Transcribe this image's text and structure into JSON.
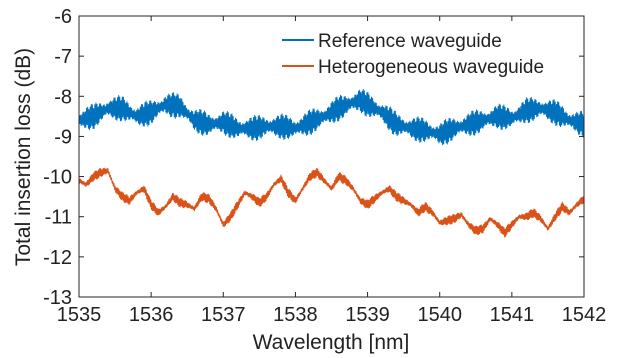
{
  "chart_data": {
    "type": "line",
    "title": "",
    "xlabel": "Wavelength [nm]",
    "ylabel": "Total insertion loss (dB)",
    "xlim": [
      1535,
      1542
    ],
    "ylim": [
      -13,
      -6
    ],
    "xticks": [
      1535,
      1536,
      1537,
      1538,
      1539,
      1540,
      1541,
      1542
    ],
    "yticks": [
      -13,
      -12,
      -11,
      -10,
      -9,
      -8,
      -7,
      -6
    ],
    "grid": false,
    "legend_position": "top-right",
    "series": [
      {
        "name": "Reference waveguide",
        "color": "#0072BD",
        "ripple": 0.22,
        "x": [
          1535.0,
          1535.2,
          1535.4,
          1535.6,
          1535.8,
          1536.0,
          1536.2,
          1536.4,
          1536.6,
          1536.8,
          1537.0,
          1537.2,
          1537.4,
          1537.6,
          1537.8,
          1538.0,
          1538.2,
          1538.4,
          1538.6,
          1538.8,
          1538.9,
          1539.0,
          1539.2,
          1539.4,
          1539.6,
          1539.8,
          1540.0,
          1540.2,
          1540.4,
          1540.6,
          1540.8,
          1541.0,
          1541.2,
          1541.4,
          1541.6,
          1541.8,
          1542.0
        ],
        "y": [
          -8.6,
          -8.5,
          -8.3,
          -8.3,
          -8.5,
          -8.4,
          -8.2,
          -8.25,
          -8.6,
          -8.7,
          -8.65,
          -8.8,
          -8.8,
          -8.75,
          -8.75,
          -8.8,
          -8.65,
          -8.5,
          -8.3,
          -8.15,
          -8.1,
          -8.2,
          -8.4,
          -8.7,
          -8.8,
          -8.85,
          -8.95,
          -8.8,
          -8.7,
          -8.6,
          -8.5,
          -8.55,
          -8.35,
          -8.3,
          -8.4,
          -8.6,
          -8.7
        ]
      },
      {
        "name": "Heterogeneous waveguide",
        "color": "#D95319",
        "ripple": 0.08,
        "x": [
          1535.0,
          1535.1,
          1535.2,
          1535.3,
          1535.4,
          1535.5,
          1535.6,
          1535.7,
          1535.8,
          1535.9,
          1536.0,
          1536.1,
          1536.2,
          1536.3,
          1536.4,
          1536.5,
          1536.6,
          1536.7,
          1536.8,
          1536.9,
          1537.0,
          1537.1,
          1537.2,
          1537.3,
          1537.4,
          1537.5,
          1537.6,
          1537.7,
          1537.8,
          1537.9,
          1538.0,
          1538.1,
          1538.2,
          1538.3,
          1538.4,
          1538.5,
          1538.6,
          1538.7,
          1538.8,
          1538.9,
          1539.0,
          1539.1,
          1539.2,
          1539.3,
          1539.4,
          1539.5,
          1539.6,
          1539.7,
          1539.8,
          1539.9,
          1540.0,
          1540.1,
          1540.2,
          1540.3,
          1540.4,
          1540.5,
          1540.6,
          1540.7,
          1540.8,
          1540.9,
          1541.0,
          1541.1,
          1541.2,
          1541.3,
          1541.4,
          1541.5,
          1541.6,
          1541.7,
          1541.8,
          1541.9,
          1542.0
        ],
        "y": [
          -10.1,
          -10.2,
          -10.0,
          -9.9,
          -9.85,
          -10.3,
          -10.5,
          -10.6,
          -10.4,
          -10.3,
          -10.7,
          -10.9,
          -10.75,
          -10.5,
          -10.65,
          -10.7,
          -10.8,
          -10.5,
          -10.55,
          -10.8,
          -11.2,
          -11.0,
          -10.7,
          -10.4,
          -10.5,
          -10.65,
          -10.5,
          -10.2,
          -10.05,
          -10.4,
          -10.6,
          -10.3,
          -10.0,
          -9.9,
          -10.1,
          -10.3,
          -10.0,
          -10.1,
          -10.3,
          -10.6,
          -10.7,
          -10.55,
          -10.4,
          -10.3,
          -10.5,
          -10.6,
          -10.7,
          -10.9,
          -10.75,
          -10.9,
          -11.15,
          -11.1,
          -11.05,
          -10.95,
          -11.2,
          -11.35,
          -11.3,
          -11.05,
          -11.2,
          -11.4,
          -11.2,
          -11.0,
          -11.0,
          -10.9,
          -11.05,
          -11.3,
          -11.0,
          -10.75,
          -10.9,
          -10.7,
          -10.55
        ]
      }
    ]
  }
}
